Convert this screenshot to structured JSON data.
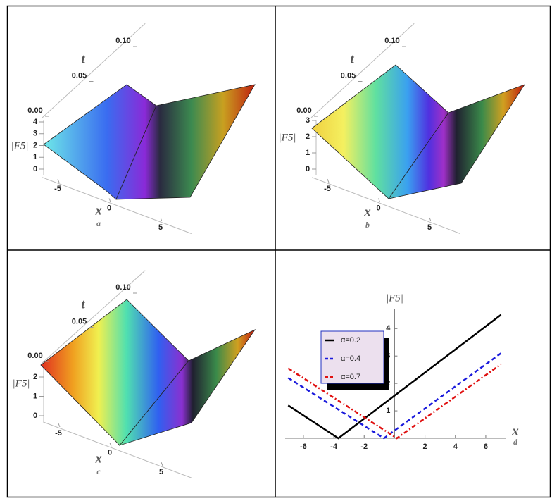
{
  "chart_data": [
    {
      "type": "surface3d",
      "label": "a",
      "x_label": "x",
      "t_label": "t",
      "z_label": "|F5|",
      "xticks": [
        -5,
        0,
        5
      ],
      "tticks": [
        {
          "value": 0,
          "label": "0.00"
        },
        {
          "value": 0.05,
          "label": "0.05"
        },
        {
          "value": 0.1,
          "label": "0.10"
        }
      ],
      "zticks": [
        0,
        1,
        2,
        3,
        4
      ]
    },
    {
      "type": "surface3d",
      "label": "b",
      "x_label": "x",
      "t_label": "t",
      "z_label": "|F5|",
      "xticks": [
        -5,
        0,
        5
      ],
      "tticks": [
        {
          "value": 0,
          "label": "0.00"
        },
        {
          "value": 0.05,
          "label": "0.05"
        },
        {
          "value": 0.1,
          "label": "0.10"
        }
      ],
      "zticks": [
        0,
        1,
        2,
        3
      ]
    },
    {
      "type": "surface3d",
      "label": "c",
      "x_label": "x",
      "t_label": "t",
      "z_label": "|F5|",
      "xticks": [
        -5,
        0,
        5
      ],
      "tticks": [
        {
          "value": 0,
          "label": "0.00"
        },
        {
          "value": 0.05,
          "label": "0.05"
        },
        {
          "value": 0.1,
          "label": "0.10"
        }
      ],
      "zticks": [
        0,
        1,
        2
      ]
    },
    {
      "type": "line",
      "label": "d",
      "x_label": "x",
      "y_label": "|F5|",
      "xlim": [
        -7.2,
        7.3
      ],
      "ylim": [
        0,
        4.7
      ],
      "xticks": [
        -6,
        -4,
        -2,
        2,
        4,
        6
      ],
      "yticks": [
        1,
        2,
        3,
        4
      ],
      "legend": "upper left",
      "series": [
        {
          "name": "α=0.2",
          "color": "#000000",
          "dash": "solid",
          "x": [
            -7,
            -3.7,
            7
          ],
          "values": [
            1.2,
            0,
            4.5
          ]
        },
        {
          "name": "α=0.4",
          "color": "#1a1adc",
          "dash": "dashed",
          "x": [
            -7,
            -0.7,
            7
          ],
          "values": [
            2.2,
            0,
            3.1
          ]
        },
        {
          "name": "α=0.7",
          "color": "#e01010",
          "dash": "dashdot",
          "x": [
            -7,
            0.15,
            7
          ],
          "values": [
            2.55,
            0,
            2.7
          ]
        }
      ]
    }
  ]
}
